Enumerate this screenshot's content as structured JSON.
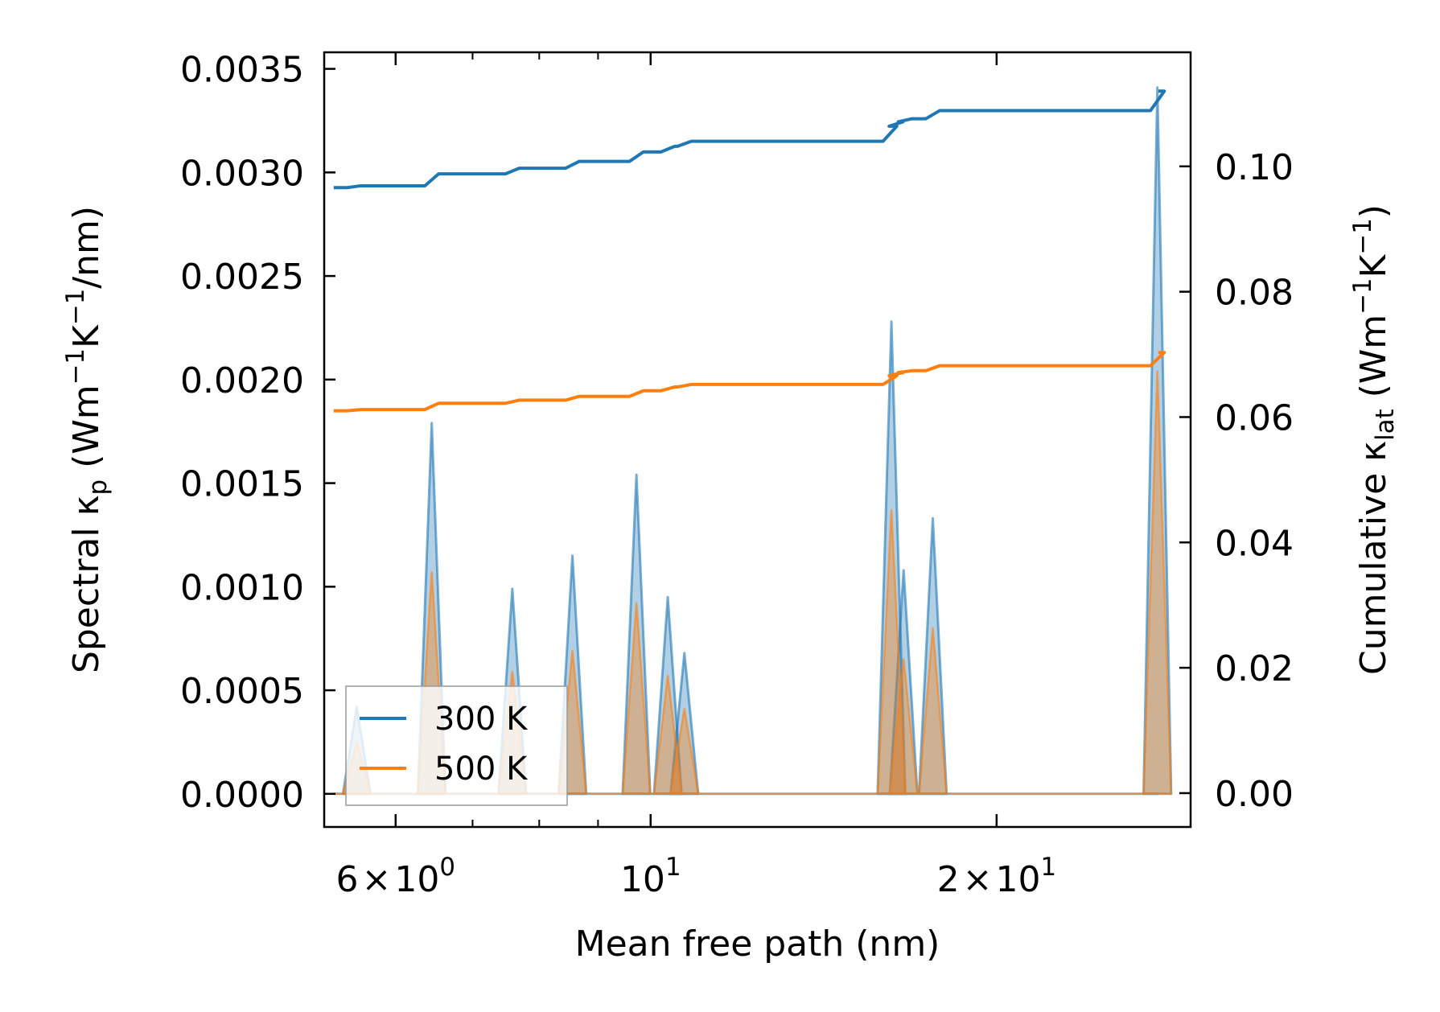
{
  "chart_data": {
    "type": "line",
    "xscale": "log",
    "xlim": [
      5.2,
      29.5
    ],
    "xlabel": "Mean free path (nm)",
    "x_ticks_major": [
      {
        "value": 6,
        "mantissa": "6",
        "exp": "0"
      },
      {
        "value": 10,
        "mantissa": "",
        "exp": "1"
      },
      {
        "value": 20,
        "mantissa": "2",
        "exp": "1"
      }
    ],
    "x_ticks_minor": [
      7,
      8,
      9,
      30
    ],
    "y_left": {
      "label_main": "Spectral κ",
      "label_sub": "p",
      "label_unit_pre": " (Wm",
      "label_unit_sup1": "−1",
      "label_unit_mid": "K",
      "label_unit_sup2": "−1",
      "label_unit_post": "/nm)",
      "ylim": [
        -0.00016,
        0.00358
      ],
      "ticks": [
        "0.0000",
        "0.0005",
        "0.0010",
        "0.0015",
        "0.0020",
        "0.0025",
        "0.0030",
        "0.0035"
      ]
    },
    "y_right": {
      "label_main": "Cumulative κ",
      "label_sub": "lat",
      "label_unit_pre": " (Wm",
      "label_unit_sup1": "−1",
      "label_unit_mid": "K",
      "label_unit_sup2": "−1",
      "label_unit_post": ")",
      "ylim": [
        -0.0054,
        0.1182
      ],
      "ticks": [
        "0.00",
        "0.02",
        "0.04",
        "0.06",
        "0.08",
        "0.10"
      ]
    },
    "legend": {
      "position": "lower-left",
      "entries": [
        "300 K",
        "500 K"
      ]
    },
    "colors": {
      "300 K": "#1f77b4",
      "500 K": "#ff7f0e"
    },
    "x_start": 5.3,
    "peaks": [
      {
        "x": 5.55,
        "k300": 0.00042,
        "k500": 0.00025
      },
      {
        "x": 6.45,
        "k300": 0.00179,
        "k500": 0.00107
      },
      {
        "x": 7.58,
        "k300": 0.00099,
        "k500": 0.00059
      },
      {
        "x": 8.55,
        "k300": 0.00115,
        "k500": 0.00069
      },
      {
        "x": 9.72,
        "k300": 0.00154,
        "k500": 0.00092
      },
      {
        "x": 10.35,
        "k300": 0.00095,
        "k500": 0.00057
      },
      {
        "x": 10.7,
        "k300": 0.00068,
        "k500": 0.00041
      },
      {
        "x": 16.2,
        "k300": 0.00228,
        "k500": 0.00137
      },
      {
        "x": 16.6,
        "k300": 0.00108,
        "k500": 0.00065
      },
      {
        "x": 17.6,
        "k300": 0.00133,
        "k500": 0.0008
      },
      {
        "x": 27.6,
        "k300": 0.00341,
        "k500": 0.00204
      }
    ],
    "series": [
      {
        "name": "300 K",
        "cumulative": {
          "start": 0.0966,
          "points": [
            [
              5.52,
              0.0969
            ],
            [
              6.45,
              0.0988
            ],
            [
              7.58,
              0.0997
            ],
            [
              8.55,
              0.1008
            ],
            [
              9.72,
              0.1023
            ],
            [
              10.35,
              0.1032
            ],
            [
              10.7,
              0.104
            ],
            [
              16.15,
              0.1064
            ],
            [
              16.35,
              0.1071
            ],
            [
              16.65,
              0.1076
            ],
            [
              17.6,
              0.1089
            ],
            [
              27.6,
              0.112
            ]
          ]
        }
      },
      {
        "name": "500 K",
        "cumulative": {
          "start": 0.061,
          "points": [
            [
              5.52,
              0.0612
            ],
            [
              6.45,
              0.0622
            ],
            [
              7.58,
              0.0627
            ],
            [
              8.55,
              0.0633
            ],
            [
              9.72,
              0.0642
            ],
            [
              10.35,
              0.0648
            ],
            [
              10.7,
              0.0652
            ],
            [
              16.15,
              0.0666
            ],
            [
              16.35,
              0.0671
            ],
            [
              16.65,
              0.0674
            ],
            [
              17.6,
              0.0682
            ],
            [
              27.6,
              0.0703
            ]
          ]
        }
      }
    ],
    "x_end": 27.65
  }
}
